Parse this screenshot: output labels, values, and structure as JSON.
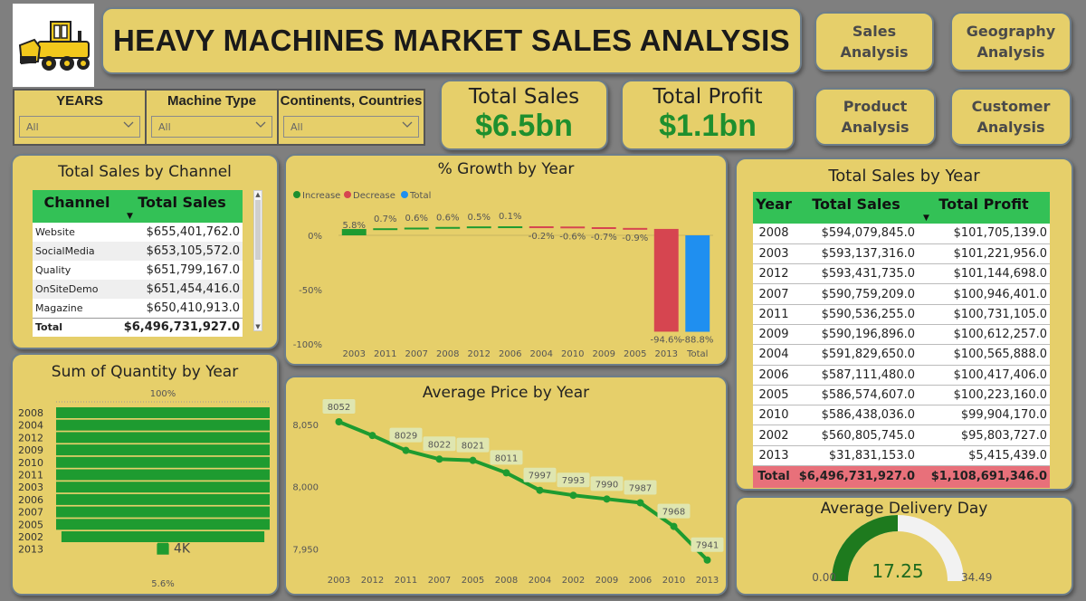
{
  "header": {
    "title": "HEAVY MACHINES MARKET SALES ANALYSIS",
    "logo_icon": "bulldozer-icon"
  },
  "nav": {
    "sales": "Sales Analysis",
    "geo_line1": "Geography",
    "geo_line2": "Analysis",
    "prod_line1": "Product",
    "prod_line2": "Analysis",
    "cust_line1": "Customer",
    "cust_line2": "Analysis"
  },
  "filters": {
    "years": {
      "label": "YEARS",
      "value": "All"
    },
    "machine": {
      "label": "Machine Type",
      "value": "All"
    },
    "geo": {
      "label": "Continents, Countries",
      "value": "All"
    }
  },
  "kpis": {
    "sales_label": "Total Sales",
    "sales_value": "$6.5bn",
    "profit_label": "Total Profit",
    "profit_value": "$1.1bn"
  },
  "channel": {
    "title": "Total Sales by Channel",
    "headers": [
      "Channel",
      "Total Sales"
    ],
    "rows": [
      [
        "Website",
        "$655,401,762.0"
      ],
      [
        "SocialMedia",
        "$653,105,572.0"
      ],
      [
        "Quality",
        "$651,799,167.0"
      ],
      [
        "OnSiteDemo",
        "$651,454,416.0"
      ],
      [
        "Magazine",
        "$650,410,913.0"
      ]
    ],
    "total_label": "Total",
    "total_value": "$6,496,731,927.0"
  },
  "year_table": {
    "title": "Total Sales by Year",
    "headers": [
      "Year",
      "Total Sales",
      "Total Profit"
    ],
    "rows": [
      [
        "2008",
        "$594,079,845.0",
        "$101,705,139.0"
      ],
      [
        "2003",
        "$593,137,316.0",
        "$101,221,956.0"
      ],
      [
        "2012",
        "$593,431,735.0",
        "$101,144,698.0"
      ],
      [
        "2007",
        "$590,759,209.0",
        "$100,946,401.0"
      ],
      [
        "2011",
        "$590,536,255.0",
        "$100,731,105.0"
      ],
      [
        "2009",
        "$590,196,896.0",
        "$100,612,257.0"
      ],
      [
        "2004",
        "$591,829,650.0",
        "$100,565,888.0"
      ],
      [
        "2006",
        "$587,111,480.0",
        "$100,417,406.0"
      ],
      [
        "2005",
        "$586,574,607.0",
        "$100,223,160.0"
      ],
      [
        "2010",
        "$586,438,036.0",
        "$99,904,170.0"
      ],
      [
        "2002",
        "$560,805,745.0",
        "$95,803,727.0"
      ],
      [
        "2013",
        "$31,831,153.0",
        "$5,415,439.0"
      ]
    ],
    "total": [
      "Total",
      "$6,496,731,927.0",
      "$1,108,691,346.0"
    ]
  },
  "delivery": {
    "title": "Average Delivery Day",
    "min": "0.00",
    "max": "34.49",
    "value_label": "17.25"
  },
  "colors": {
    "card": "#e6cf6a",
    "green": "#1e8f2e",
    "header_green": "#33c156",
    "decrease": "#d64550",
    "total": "#1f8ff0",
    "total_row": "#e8707a"
  },
  "chart_data": [
    {
      "type": "bar",
      "title": "Sum of Quantity by Year",
      "orientation": "horizontal",
      "categories": [
        "2008",
        "2004",
        "2012",
        "2009",
        "2010",
        "2011",
        "2003",
        "2006",
        "2007",
        "2005",
        "2002",
        "2013"
      ],
      "values": [
        100,
        100,
        100,
        100,
        100,
        100,
        100,
        100,
        100,
        100,
        95,
        5.6
      ],
      "top_label": "100%",
      "bottom_label": "5.6%",
      "annotation": "4K",
      "xlabel": "",
      "ylabel": ""
    },
    {
      "type": "bar",
      "title": "% Growth by Year",
      "subtype": "waterfall",
      "legend": [
        "Increase",
        "Decrease",
        "Total"
      ],
      "legend_position": "top-left",
      "categories": [
        "2003",
        "2011",
        "2007",
        "2008",
        "2012",
        "2006",
        "2004",
        "2010",
        "2009",
        "2005",
        "2013",
        "Total"
      ],
      "values": [
        5.8,
        0.7,
        0.6,
        0.6,
        0.5,
        0.1,
        -0.2,
        -0.6,
        -0.7,
        -0.9,
        -94.6,
        -88.8
      ],
      "value_labels": [
        "5.8%",
        "0.7%",
        "0.6%",
        "0.6%",
        "0.5%",
        "0.1%",
        "-0.2%",
        "-0.6%",
        "-0.7%",
        "-0.9%",
        "-94.6%",
        "-88.8%"
      ],
      "yticks": [
        "0%",
        "-50%",
        "-100%"
      ],
      "ylim": [
        -100,
        10
      ]
    },
    {
      "type": "line",
      "title": "Average Price by Year",
      "x": [
        "2003",
        "2012",
        "2011",
        "2007",
        "2005",
        "2008",
        "2004",
        "2002",
        "2009",
        "2006",
        "2010",
        "2013"
      ],
      "y": [
        8052,
        8041,
        8029,
        8022,
        8021,
        8011,
        7997,
        7993,
        7990,
        7987,
        7968,
        7941
      ],
      "point_labels": [
        "8052",
        "",
        "8029",
        "8022",
        "8021",
        "8011",
        "7997",
        "7993",
        "7990",
        "7987",
        "7968",
        "7941"
      ],
      "yticks": [
        "8,050",
        "8,000",
        "7,950"
      ],
      "ylim": [
        7935,
        8060
      ]
    }
  ]
}
